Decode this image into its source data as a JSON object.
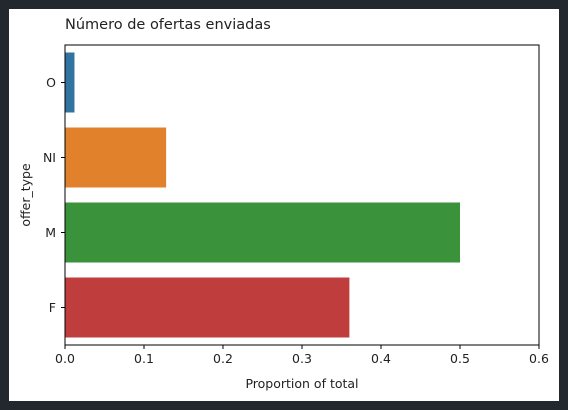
{
  "chart_data": {
    "type": "bar",
    "orientation": "horizontal",
    "title": "Número de ofertas enviadas",
    "xlabel": "Proportion of total",
    "ylabel": "offer_type",
    "categories": [
      "O",
      "NI",
      "M",
      "F"
    ],
    "values": [
      0.012,
      0.128,
      0.5,
      0.36
    ],
    "colors": [
      "#3274a1",
      "#e1812c",
      "#3a923a",
      "#c03d3e"
    ],
    "xlim": [
      0,
      0.6
    ],
    "xticks": [
      0.0,
      0.1,
      0.2,
      0.3,
      0.4,
      0.5,
      0.6
    ],
    "xtick_labels": [
      "0.0",
      "0.1",
      "0.2",
      "0.3",
      "0.4",
      "0.5",
      "0.6"
    ],
    "grid": false,
    "legend": "none"
  }
}
